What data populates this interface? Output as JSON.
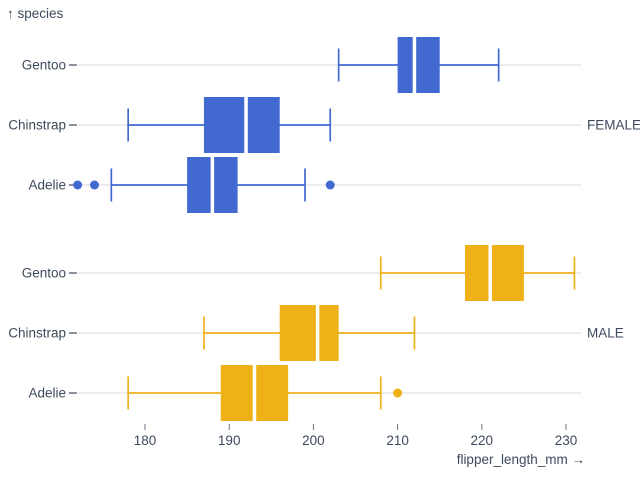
{
  "chart_data": {
    "type": "box",
    "orientation": "horizontal",
    "x": {
      "label": "flipper_length_mm →",
      "ticks": [
        180,
        190,
        200,
        210,
        220,
        230
      ],
      "domain": [
        172,
        232
      ]
    },
    "y": {
      "label": "↑ species",
      "categories": [
        "Gentoo",
        "Chinstrap",
        "Adelie"
      ]
    },
    "facet": {
      "labels": [
        "FEMALE",
        "MALE"
      ],
      "position": "right"
    },
    "colors": {
      "female_blue": "#4269d0",
      "male_orange": "#efb118",
      "grid": "#d9d9d9",
      "text": "#3d4a5c",
      "tick_mark": "#6b7280",
      "median": "#ffffff",
      "background": "#ffffff"
    },
    "facets": [
      {
        "label": "FEMALE",
        "color": "#4269d0",
        "rows": [
          {
            "species": "Gentoo",
            "whisker_min": 203,
            "q1": 210,
            "median": 212,
            "q3": 215,
            "whisker_max": 222,
            "outliers": []
          },
          {
            "species": "Chinstrap",
            "whisker_min": 178,
            "q1": 187,
            "median": 192,
            "q3": 196,
            "whisker_max": 202,
            "outliers": []
          },
          {
            "species": "Adelie",
            "whisker_min": 176,
            "q1": 185,
            "median": 188,
            "q3": 191,
            "whisker_max": 199,
            "outliers": [
              172,
              174,
              202
            ]
          }
        ]
      },
      {
        "label": "MALE",
        "color": "#efb118",
        "rows": [
          {
            "species": "Gentoo",
            "whisker_min": 208,
            "q1": 218,
            "median": 221,
            "q3": 225,
            "whisker_max": 231,
            "outliers": []
          },
          {
            "species": "Chinstrap",
            "whisker_min": 187,
            "q1": 196,
            "median": 200.5,
            "q3": 203,
            "whisker_max": 212,
            "outliers": []
          },
          {
            "species": "Adelie",
            "whisker_min": 178,
            "q1": 189,
            "median": 193,
            "q3": 197,
            "whisker_max": 208,
            "outliers": [
              210
            ]
          }
        ]
      }
    ]
  }
}
